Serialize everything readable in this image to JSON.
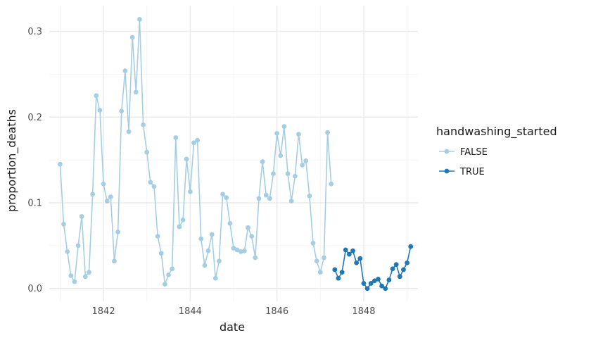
{
  "chart_data": {
    "type": "line",
    "xlabel": "date",
    "ylabel": "proportion_deaths",
    "x_ticks": [
      "1842",
      "1844",
      "1846",
      "1848"
    ],
    "y_ticks": [
      "0.0",
      "0.1",
      "0.2",
      "0.3"
    ],
    "xlim": [
      "1840-10",
      "1849-04"
    ],
    "ylim": [
      -0.015,
      0.33
    ],
    "grid": true,
    "legend": {
      "title": "handwashing_started",
      "placement": "right",
      "entries": [
        "FALSE",
        "TRUE"
      ]
    },
    "series": [
      {
        "name": "FALSE",
        "color": "#a6cee3",
        "points": [
          [
            "1841-01",
            0.145
          ],
          [
            "1841-02",
            0.075
          ],
          [
            "1841-03",
            0.043
          ],
          [
            "1841-04",
            0.015
          ],
          [
            "1841-05",
            0.008
          ],
          [
            "1841-06",
            0.05
          ],
          [
            "1841-07",
            0.084
          ],
          [
            "1841-08",
            0.014
          ],
          [
            "1841-09",
            0.019
          ],
          [
            "1841-10",
            0.11
          ],
          [
            "1841-11",
            0.225
          ],
          [
            "1841-12",
            0.208
          ],
          [
            "1842-01",
            0.122
          ],
          [
            "1842-02",
            0.102
          ],
          [
            "1842-03",
            0.107
          ],
          [
            "1842-04",
            0.032
          ],
          [
            "1842-05",
            0.066
          ],
          [
            "1842-06",
            0.207
          ],
          [
            "1842-07",
            0.254
          ],
          [
            "1842-08",
            0.183
          ],
          [
            "1842-09",
            0.293
          ],
          [
            "1842-10",
            0.229
          ],
          [
            "1842-11",
            0.314
          ],
          [
            "1842-12",
            0.191
          ],
          [
            "1843-01",
            0.159
          ],
          [
            "1843-02",
            0.124
          ],
          [
            "1843-03",
            0.119
          ],
          [
            "1843-04",
            0.061
          ],
          [
            "1843-05",
            0.041
          ],
          [
            "1843-06",
            0.005
          ],
          [
            "1843-07",
            0.016
          ],
          [
            "1843-08",
            0.023
          ],
          [
            "1843-09",
            0.176
          ],
          [
            "1843-10",
            0.072
          ],
          [
            "1843-11",
            0.08
          ],
          [
            "1843-12",
            0.151
          ],
          [
            "1844-01",
            0.113
          ],
          [
            "1844-02",
            0.17
          ],
          [
            "1844-03",
            0.173
          ],
          [
            "1844-04",
            0.058
          ],
          [
            "1844-05",
            0.027
          ],
          [
            "1844-06",
            0.044
          ],
          [
            "1844-07",
            0.063
          ],
          [
            "1844-08",
            0.012
          ],
          [
            "1844-09",
            0.032
          ],
          [
            "1844-10",
            0.11
          ],
          [
            "1844-11",
            0.106
          ],
          [
            "1844-12",
            0.076
          ],
          [
            "1845-01",
            0.047
          ],
          [
            "1845-02",
            0.045
          ],
          [
            "1845-03",
            0.043
          ],
          [
            "1845-04",
            0.044
          ],
          [
            "1845-05",
            0.071
          ],
          [
            "1845-06",
            0.061
          ],
          [
            "1845-07",
            0.036
          ],
          [
            "1845-08",
            0.105
          ],
          [
            "1845-09",
            0.148
          ],
          [
            "1845-10",
            0.109
          ],
          [
            "1845-11",
            0.105
          ],
          [
            "1845-12",
            0.134
          ],
          [
            "1846-01",
            0.181
          ],
          [
            "1846-02",
            0.155
          ],
          [
            "1846-03",
            0.189
          ],
          [
            "1846-04",
            0.134
          ],
          [
            "1846-05",
            0.102
          ],
          [
            "1846-06",
            0.131
          ],
          [
            "1846-07",
            0.18
          ],
          [
            "1846-08",
            0.144
          ],
          [
            "1846-09",
            0.149
          ],
          [
            "1846-10",
            0.108
          ],
          [
            "1846-11",
            0.053
          ],
          [
            "1846-12",
            0.032
          ],
          [
            "1847-01",
            0.019
          ],
          [
            "1847-02",
            0.036
          ],
          [
            "1847-03",
            0.182
          ],
          [
            "1847-04",
            0.122
          ]
        ]
      },
      {
        "name": "TRUE",
        "color": "#1f78b4",
        "points": [
          [
            "1847-05",
            0.022
          ],
          [
            "1847-06",
            0.012
          ],
          [
            "1847-07",
            0.019
          ],
          [
            "1847-08",
            0.045
          ],
          [
            "1847-09",
            0.04
          ],
          [
            "1847-10",
            0.044
          ],
          [
            "1847-11",
            0.03
          ],
          [
            "1847-12",
            0.035
          ],
          [
            "1848-01",
            0.006
          ],
          [
            "1848-02",
            0.0
          ],
          [
            "1848-03",
            0.006
          ],
          [
            "1848-04",
            0.009
          ],
          [
            "1848-05",
            0.011
          ],
          [
            "1848-06",
            0.003
          ],
          [
            "1848-07",
            0.0
          ],
          [
            "1848-08",
            0.01
          ],
          [
            "1848-09",
            0.023
          ],
          [
            "1848-10",
            0.028
          ],
          [
            "1848-11",
            0.014
          ],
          [
            "1848-12",
            0.022
          ],
          [
            "1849-01",
            0.03
          ],
          [
            "1849-02",
            0.049
          ]
        ]
      }
    ]
  }
}
